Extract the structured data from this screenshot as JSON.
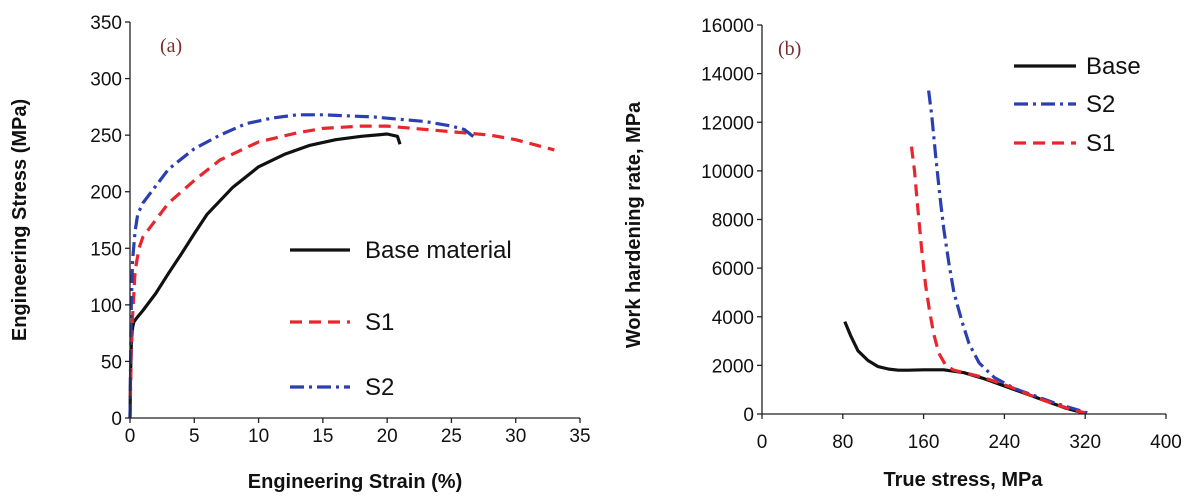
{
  "colors": {
    "base": "#111111",
    "s1": "#e8262d",
    "s2": "#2b3fb0",
    "panel_label": "#7a2e2e"
  },
  "chart_data": [
    {
      "type": "line",
      "panel_label": "(a)",
      "xlabel": "Engineering Strain (%)",
      "ylabel": "Engineering Stress (MPa)",
      "xlim": [
        0,
        35
      ],
      "ylim": [
        0,
        350
      ],
      "xticks": [
        0,
        5,
        10,
        15,
        20,
        25,
        30,
        35
      ],
      "yticks": [
        0,
        50,
        100,
        150,
        200,
        250,
        300,
        350
      ],
      "grid": false,
      "legend_position": "bottom-right",
      "series": [
        {
          "name": "Base material",
          "style": "solid",
          "color_key": "base",
          "x": [
            0,
            0.05,
            0.1,
            0.2,
            0.3,
            0.5,
            1,
            2,
            3,
            4,
            5,
            6,
            8,
            10,
            12,
            14,
            16,
            18,
            20,
            20.8,
            21.0
          ],
          "y": [
            0,
            40,
            65,
            80,
            85,
            88,
            95,
            110,
            128,
            145,
            163,
            180,
            204,
            222,
            233,
            241,
            246,
            249,
            251,
            249,
            242
          ]
        },
        {
          "name": "S1",
          "style": "dashed",
          "color_key": "s1",
          "x": [
            0,
            0.1,
            0.2,
            0.4,
            0.7,
            1,
            2,
            3,
            5,
            7,
            10,
            13,
            15,
            18,
            20,
            23,
            25,
            28,
            30,
            33
          ],
          "y": [
            0,
            60,
            90,
            130,
            150,
            160,
            175,
            190,
            210,
            228,
            244,
            252,
            256,
            258,
            258,
            255,
            253,
            250,
            246,
            237
          ]
        },
        {
          "name": "S2",
          "style": "dashdot",
          "color_key": "s2",
          "x": [
            0,
            0.05,
            0.1,
            0.2,
            0.4,
            0.6,
            1,
            2,
            3,
            5,
            7,
            9,
            11,
            13,
            15,
            17,
            19,
            21,
            23,
            25,
            26,
            27
          ],
          "y": [
            0,
            50,
            100,
            140,
            165,
            180,
            190,
            205,
            220,
            238,
            250,
            260,
            265,
            268,
            268,
            267,
            266,
            264,
            262,
            258,
            255,
            246
          ]
        }
      ]
    },
    {
      "type": "line",
      "panel_label": "(b)",
      "xlabel": "True stress, MPa",
      "ylabel": "Work hardening rate, MPa",
      "xlim": [
        0,
        400
      ],
      "ylim": [
        0,
        16000
      ],
      "xticks": [
        0,
        80,
        160,
        240,
        320,
        400
      ],
      "yticks": [
        0,
        2000,
        4000,
        6000,
        8000,
        10000,
        12000,
        14000,
        16000
      ],
      "grid": false,
      "legend_position": "top-right",
      "series": [
        {
          "name": "Base",
          "style": "solid",
          "color_key": "base",
          "x": [
            82,
            88,
            95,
            105,
            115,
            125,
            135,
            145,
            160,
            180,
            200,
            220,
            240,
            260,
            280,
            300,
            318
          ],
          "y": [
            3800,
            3200,
            2600,
            2200,
            1950,
            1850,
            1800,
            1800,
            1820,
            1820,
            1700,
            1450,
            1150,
            850,
            550,
            250,
            50
          ]
        },
        {
          "name": "S2",
          "style": "dashdot",
          "color_key": "s2",
          "x": [
            165,
            168,
            172,
            176,
            180,
            185,
            190,
            198,
            205,
            215,
            230,
            250,
            270,
            290,
            310,
            322
          ],
          "y": [
            13300,
            12300,
            10600,
            9000,
            7600,
            6200,
            5000,
            3800,
            2900,
            2100,
            1500,
            1050,
            750,
            450,
            200,
            50
          ]
        },
        {
          "name": "S1",
          "style": "dashed",
          "color_key": "s1",
          "x": [
            148,
            151,
            154,
            158,
            162,
            166,
            170,
            175,
            182,
            190,
            200,
            215,
            230,
            250,
            270,
            290,
            310,
            320
          ],
          "y": [
            11000,
            10000,
            8600,
            6800,
            5300,
            4200,
            3300,
            2500,
            2000,
            1800,
            1700,
            1550,
            1350,
            1050,
            700,
            400,
            150,
            50
          ]
        }
      ]
    }
  ]
}
